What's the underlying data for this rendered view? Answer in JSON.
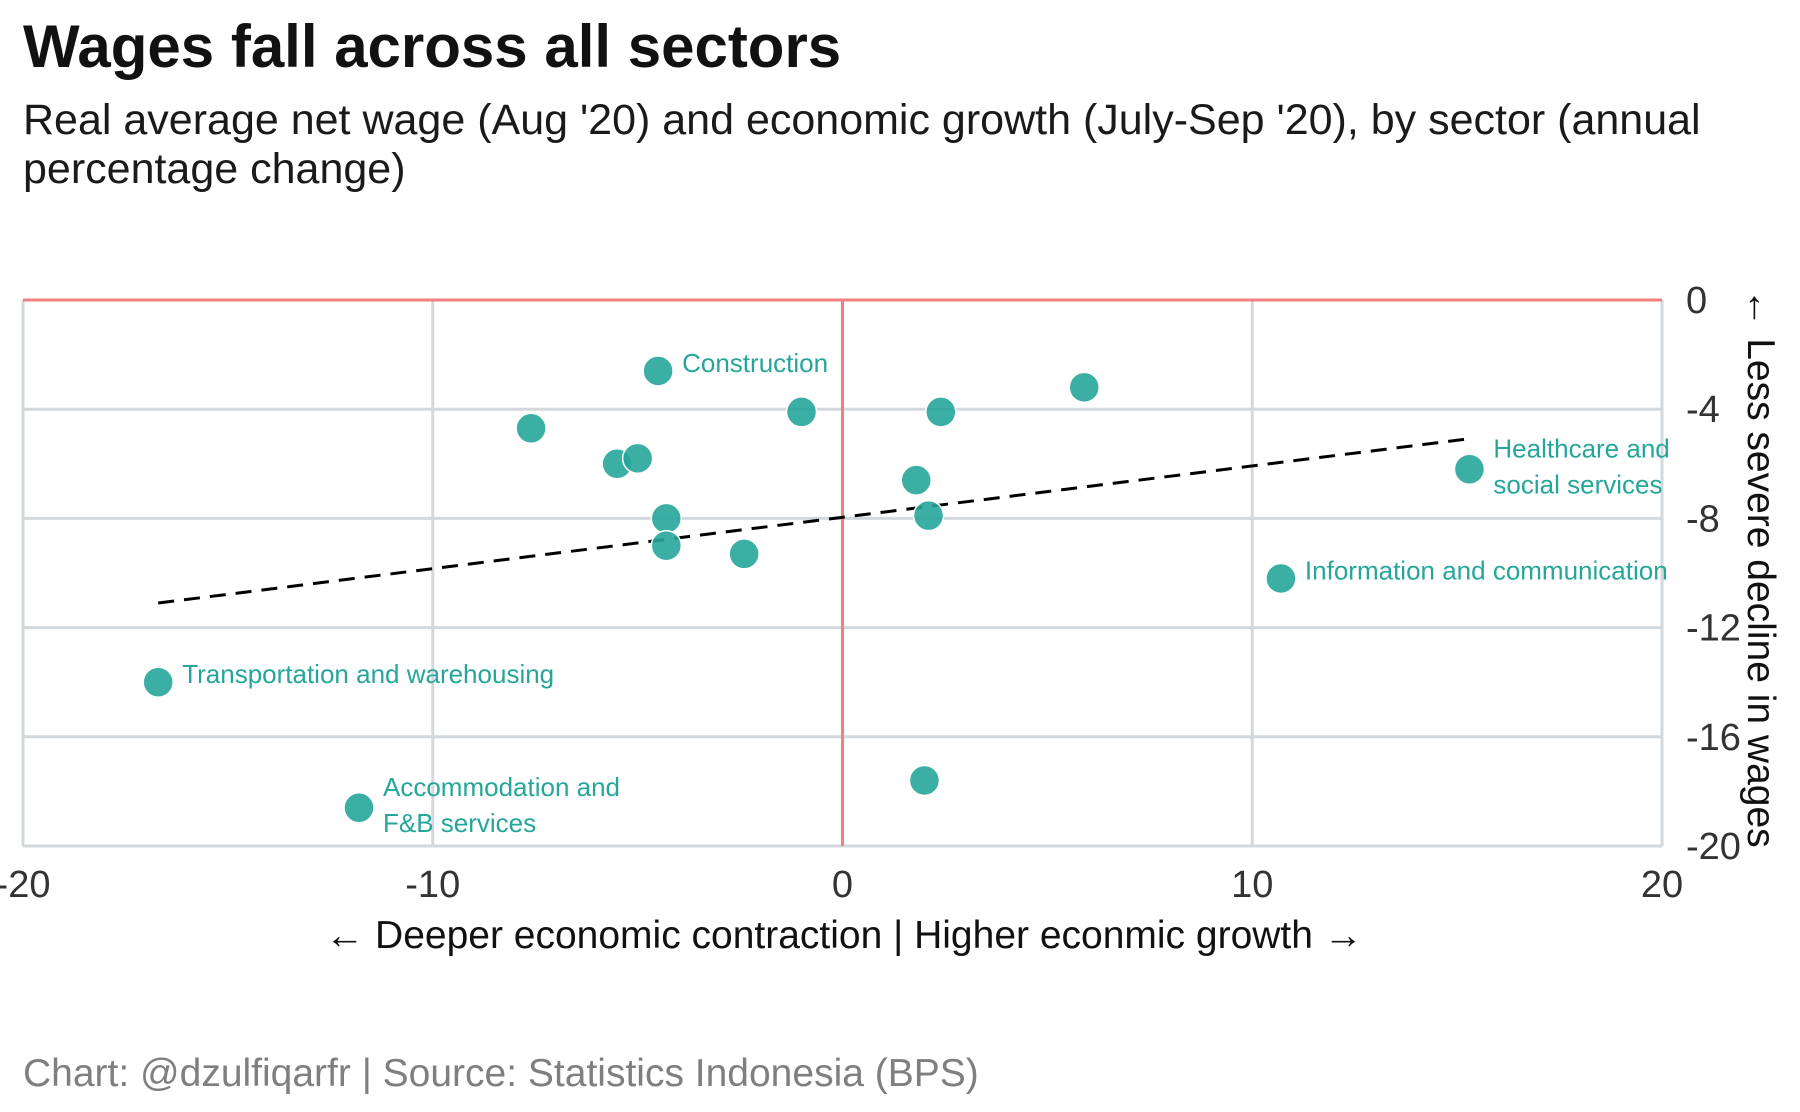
{
  "chart_data": {
    "type": "scatter",
    "title": "Wages fall across all sectors",
    "subtitle": "Real average net wage (Aug '20) and economic growth (July-Sep '20), by sector (annual percentage change)",
    "xlabel": "← Deeper economic contraction | Higher econmic growth →",
    "ylabel": "← Less severe decline in wages",
    "xlim": [
      -20,
      20
    ],
    "ylim": [
      -20,
      0
    ],
    "xticks": [
      "-20",
      "-10",
      "0",
      "10",
      "20"
    ],
    "yticks": [
      "0",
      "-4",
      "-8",
      "-12",
      "-16",
      "-20"
    ],
    "grid": true,
    "reference_lines": {
      "x": 0,
      "y": 0,
      "color": "#f08080"
    },
    "point_color": "#26a69a",
    "trend_line": {
      "x": [
        -16.7,
        15.2
      ],
      "y": [
        -11.1,
        -5.1
      ],
      "style": "dashed"
    },
    "points": [
      {
        "x": -4.5,
        "y": -2.6,
        "label": "Construction"
      },
      {
        "x": -7.6,
        "y": -4.7,
        "label": ""
      },
      {
        "x": -1.0,
        "y": -4.1,
        "label": ""
      },
      {
        "x": 2.4,
        "y": -4.1,
        "label": ""
      },
      {
        "x": 5.9,
        "y": -3.2,
        "label": ""
      },
      {
        "x": -5.5,
        "y": -6.0,
        "label": ""
      },
      {
        "x": -5.0,
        "y": -5.8,
        "label": ""
      },
      {
        "x": 1.8,
        "y": -6.6,
        "label": ""
      },
      {
        "x": -4.3,
        "y": -8.0,
        "label": ""
      },
      {
        "x": 2.1,
        "y": -7.9,
        "label": ""
      },
      {
        "x": -4.3,
        "y": -9.0,
        "label": ""
      },
      {
        "x": -2.4,
        "y": -9.3,
        "label": ""
      },
      {
        "x": 15.3,
        "y": -6.2,
        "label": "Healthcare and social services"
      },
      {
        "x": 10.7,
        "y": -10.2,
        "label": "Information and communication"
      },
      {
        "x": -16.7,
        "y": -14.0,
        "label": "Transportation and warehousing"
      },
      {
        "x": -11.8,
        "y": -18.6,
        "label": "Accommodation and F&B services"
      },
      {
        "x": 2.0,
        "y": -17.6,
        "label": ""
      }
    ],
    "caption": "Chart: @dzulfiqarfr | Source: Statistics Indonesia (BPS)"
  }
}
